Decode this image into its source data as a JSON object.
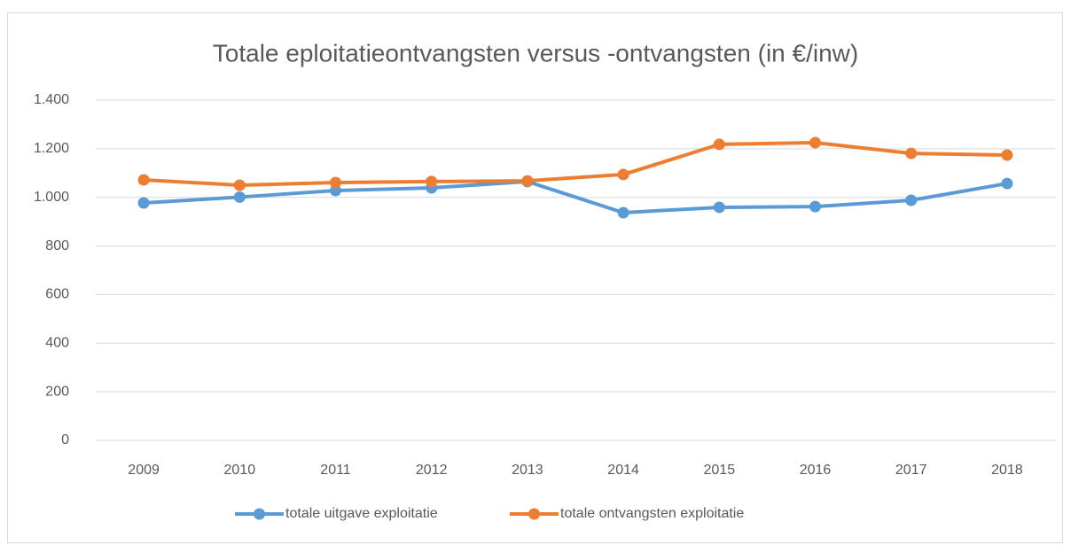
{
  "chart_data": {
    "type": "line",
    "title": "Totale eploitatieontvangsten versus -ontvangsten (in €/inw)",
    "categories": [
      "2009",
      "2010",
      "2011",
      "2012",
      "2013",
      "2014",
      "2015",
      "2016",
      "2017",
      "2018"
    ],
    "series": [
      {
        "name": "totale uitgave exploitatie",
        "color": "#5b9bd5",
        "values": [
          977,
          1001,
          1028,
          1039,
          1065,
          937,
          959,
          962,
          988,
          1057
        ]
      },
      {
        "name": "totale ontvangsten exploitatie",
        "color": "#ed7d31",
        "values": [
          1072,
          1050,
          1061,
          1065,
          1068,
          1094,
          1218,
          1225,
          1181,
          1174
        ]
      }
    ],
    "ylim": [
      0,
      1400
    ],
    "yticks": [
      0,
      200,
      400,
      600,
      800,
      {
        "value": 1000,
        "label": "1.000"
      },
      {
        "value": 1200,
        "label": "1.200"
      },
      {
        "value": 1400,
        "label": "1.400"
      }
    ],
    "grid": true,
    "legend": "bottom"
  }
}
